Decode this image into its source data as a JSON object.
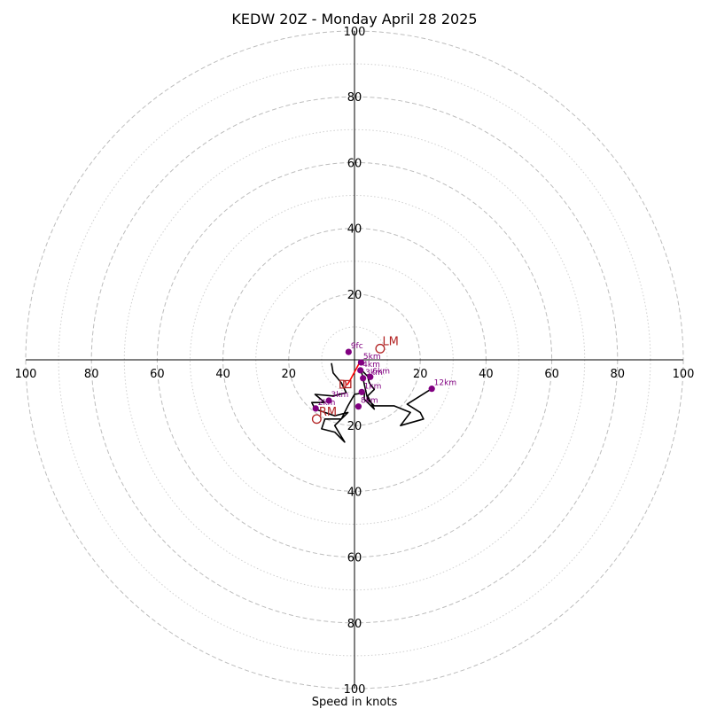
{
  "chart_data": {
    "type": "hodograph",
    "title": "KEDW 20Z - Monday April 28 2025",
    "xlabel": "Speed in knots",
    "units": "knots",
    "axis_range": [
      -100,
      100
    ],
    "ring_speeds_dashed": [
      20,
      40,
      60,
      80,
      100
    ],
    "ring_speeds_dotted": [
      10,
      30,
      50,
      70,
      90
    ],
    "axis_ticks": [
      {
        "value": 100,
        "label": "100"
      },
      {
        "value": 80,
        "label": "80"
      },
      {
        "value": 60,
        "label": "60"
      },
      {
        "value": 40,
        "label": "40"
      },
      {
        "value": 20,
        "label": "20"
      }
    ],
    "grid": true,
    "wind_trace": [
      [
        -7,
        -1
      ],
      [
        -6.5,
        -4
      ],
      [
        -4,
        -7
      ],
      [
        -2.5,
        -10
      ],
      [
        -6.5,
        -11
      ],
      [
        -12,
        -10.5
      ],
      [
        -9,
        -13
      ],
      [
        -13,
        -13
      ],
      [
        -12,
        -15
      ],
      [
        -6,
        -17
      ],
      [
        -2,
        -16
      ],
      [
        -6,
        -20
      ],
      [
        -3,
        -25
      ],
      [
        -6,
        -22
      ],
      [
        -10,
        -21
      ],
      [
        -9,
        -18
      ],
      [
        -4,
        -18
      ],
      [
        -2,
        -14
      ],
      [
        0,
        -10.5
      ],
      [
        3,
        -10
      ],
      [
        3,
        -12
      ],
      [
        6,
        -15
      ],
      [
        5,
        -13
      ],
      [
        4,
        -11
      ],
      [
        6,
        -9
      ],
      [
        4.5,
        -7
      ],
      [
        4,
        -5
      ],
      [
        3,
        -4
      ],
      [
        2,
        -3
      ],
      [
        4,
        -12
      ],
      [
        6,
        -14
      ],
      [
        9,
        -14
      ],
      [
        12,
        -14
      ],
      [
        17,
        -16
      ],
      [
        14,
        -20
      ],
      [
        21,
        -18
      ],
      [
        20,
        -16
      ],
      [
        16,
        -13.5
      ],
      [
        23.5,
        -8.8
      ]
    ],
    "height_points": [
      {
        "label": "9fc",
        "u": -1.8,
        "v": 2.4
      },
      {
        "label": "5km",
        "u": 2,
        "v": -0.8
      },
      {
        "label": "4km",
        "u": 1.8,
        "v": -3.2
      },
      {
        "label": "3km",
        "u": 2.6,
        "v": -5.6
      },
      {
        "label": "6km",
        "u": 4.8,
        "v": -5.2
      },
      {
        "label": "1km",
        "u": 2.2,
        "v": -9.8
      },
      {
        "label": "3km",
        "u": -7.8,
        "v": -12.4
      },
      {
        "label": "8km",
        "u": 1.2,
        "v": -14.2
      },
      {
        "label": "2km",
        "u": -11.8,
        "v": -14.8
      },
      {
        "label": "12km",
        "u": 23.5,
        "v": -8.8
      }
    ],
    "storm_motion": [
      {
        "label": "LM",
        "u": 7.8,
        "v": 3.4,
        "color": "#b22222"
      },
      {
        "label": "RM",
        "u": -11.5,
        "v": -18,
        "color": "#b22222"
      },
      {
        "label": "D",
        "u": -2.2,
        "v": -7.4,
        "color": "#b22222"
      }
    ],
    "bunkers_vector": {
      "from": [
        -1.5,
        -6.5
      ],
      "to": [
        2,
        0
      ],
      "color": "#ff0000"
    }
  }
}
